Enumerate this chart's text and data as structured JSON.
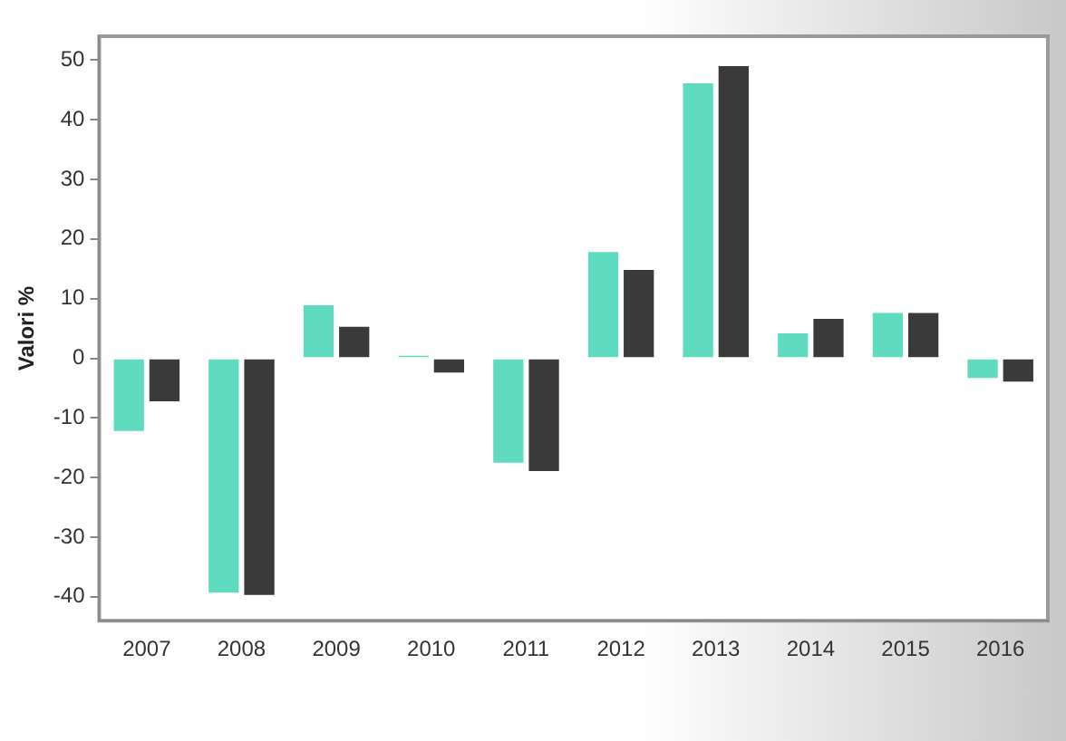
{
  "chart_data": {
    "type": "bar",
    "ylabel": "Valori %",
    "categories": [
      "2007",
      "2008",
      "2009",
      "2010",
      "2011",
      "2012",
      "2013",
      "2014",
      "2015",
      "2016"
    ],
    "series": [
      {
        "color": "#5fdcc0",
        "values": [
          -12.5,
          -39.6,
          9.2,
          0.7,
          -17.8,
          18.1,
          46.4,
          4.5,
          7.9,
          -3.6
        ]
      },
      {
        "color": "#3a3a3a",
        "values": [
          -7.5,
          -40,
          5.6,
          -2.7,
          -19.2,
          15.1,
          49.3,
          6.9,
          7.9,
          -4.2
        ]
      }
    ],
    "ylim": [
      -44,
      54
    ],
    "yticks": [
      -40,
      -30,
      -20,
      -10,
      0,
      10,
      20,
      30,
      40,
      50
    ],
    "grid": false,
    "legend": false
  }
}
